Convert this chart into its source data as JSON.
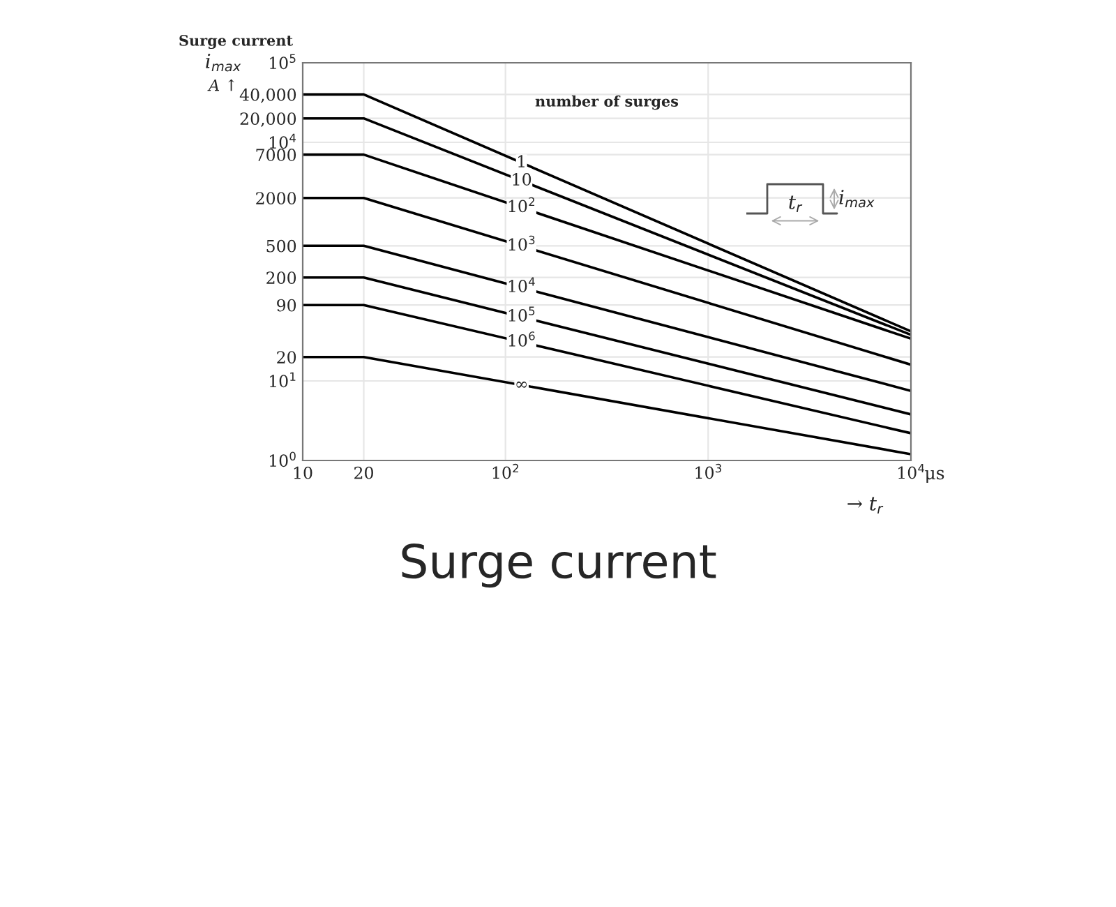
{
  "chart_data": {
    "type": "line",
    "title": "Surge current",
    "ylabel": "i$_{max}$",
    "xlabel": "→ t$_{r}$",
    "legend_title": "number of surges",
    "x": [
      10,
      20,
      10000
    ],
    "series": [
      {
        "name": "1",
        "color": "#000000",
        "values": [
          40000,
          40000,
          42
        ]
      },
      {
        "name": "10",
        "color": "#000000",
        "values": [
          20000,
          20000,
          38
        ]
      },
      {
        "name": "10$^{2}$",
        "color": "#000000",
        "values": [
          7000,
          7000,
          34
        ]
      },
      {
        "name": "10$^{3}$",
        "color": "#000000",
        "values": [
          2000,
          2000,
          16
        ]
      },
      {
        "name": "10$^{4}$",
        "color": "#000000",
        "values": [
          500,
          500,
          7.5
        ]
      },
      {
        "name": "10$^{5}$",
        "color": "#000000",
        "values": [
          200,
          200,
          3.8
        ]
      },
      {
        "name": "10$^{6}$",
        "color": "#000000",
        "values": [
          90,
          90,
          2.2
        ]
      },
      {
        "name": "∞",
        "color": "#000000",
        "values": [
          20,
          20,
          1.2
        ]
      }
    ],
    "log": "xy",
    "xlim": [
      10,
      10000
    ],
    "ylim": [
      1,
      100000
    ],
    "xticks": [
      10,
      20,
      {
        "value": 100,
        "label": "10$^{2}$"
      },
      {
        "value": 1000,
        "label": "10$^{3}$"
      },
      {
        "value": 10000,
        "label": "10$^{4}$"
      }
    ],
    "yticks": [
      {
        "value": 1,
        "label": "10$^{0}$"
      },
      {
        "value": 10,
        "label": "10$^{1}$"
      },
      20,
      90,
      200,
      500,
      2000,
      7000,
      {
        "value": 10000,
        "label": "10$^{4}$"
      },
      {
        "value": 20000,
        "label": "20,000"
      },
      {
        "value": 40000,
        "label": "40,000"
      },
      {
        "value": 100000,
        "label": "10$^{5}$"
      }
    ],
    "grid": true,
    "legend": false,
    "annotations": [
      "A ↑",
      "μs",
      "t$_{r}$",
      "i$_{max}$",
      "Surge current"
    ]
  }
}
